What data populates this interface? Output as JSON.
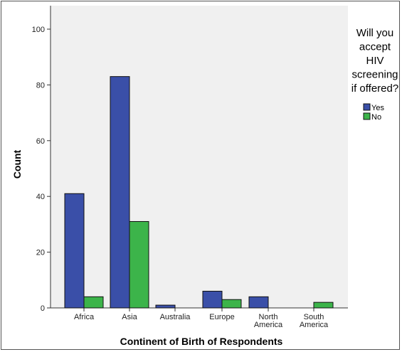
{
  "chart_data": {
    "type": "bar",
    "xlabel": "Continent of Birth of Respondents",
    "ylabel": "Count",
    "ylim": [
      0,
      100
    ],
    "yticks": [
      0,
      20,
      40,
      60,
      80,
      100
    ],
    "categories": [
      [
        "Africa"
      ],
      [
        "Asia"
      ],
      [
        "Australia"
      ],
      [
        "Europe"
      ],
      [
        "North",
        "America"
      ],
      [
        "South",
        "America"
      ]
    ],
    "series": [
      {
        "name": "Yes",
        "color": "#3a4fa8",
        "values": [
          41,
          83,
          1,
          6,
          4,
          0
        ]
      },
      {
        "name": "No",
        "color": "#3cb44a",
        "values": [
          4,
          31,
          0,
          3,
          0,
          2
        ]
      }
    ],
    "legend": {
      "title_lines": [
        "Will you",
        "accept",
        "HIV",
        "screening",
        "if offered?"
      ],
      "placement": "right"
    },
    "grid": false,
    "plot_background": "#f0f0f0"
  }
}
